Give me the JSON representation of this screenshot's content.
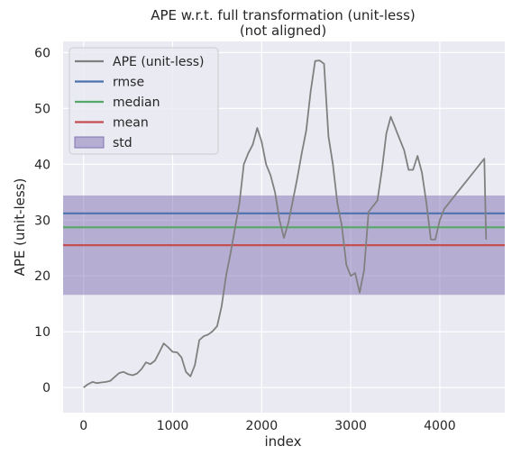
{
  "chart_data": {
    "type": "line",
    "title": [
      "APE w.r.t. full transformation (unit-less)",
      "(not aligned)"
    ],
    "xlabel": "index",
    "ylabel": "APE (unit-less)",
    "xlim": [
      -230,
      4730
    ],
    "ylim": [
      -4.5,
      62
    ],
    "xticks": [
      0,
      1000,
      2000,
      3000,
      4000
    ],
    "yticks": [
      0,
      10,
      20,
      30,
      40,
      50,
      60
    ],
    "grid": true,
    "legend_position": "top-left",
    "legend": [
      "APE (unit-less)",
      "rmse",
      "median",
      "mean",
      "std"
    ],
    "colors": {
      "background": "#eaeaf2",
      "ape": "#808080",
      "rmse": "#4c72b0",
      "median": "#55a868",
      "mean": "#c44e52",
      "std": "#8172b2"
    },
    "stats": {
      "rmse": 31.2,
      "median": 28.7,
      "mean": 25.5,
      "std_band": [
        16.6,
        34.4
      ]
    },
    "series": [
      {
        "name": "APE (unit-less)",
        "x": [
          0,
          50,
          100,
          150,
          200,
          250,
          300,
          350,
          400,
          450,
          500,
          550,
          600,
          650,
          700,
          750,
          800,
          850,
          900,
          950,
          1000,
          1050,
          1100,
          1150,
          1200,
          1250,
          1300,
          1350,
          1400,
          1450,
          1500,
          1550,
          1600,
          1650,
          1700,
          1750,
          1800,
          1850,
          1900,
          1950,
          2000,
          2050,
          2100,
          2150,
          2200,
          2250,
          2300,
          2350,
          2400,
          2450,
          2500,
          2550,
          2600,
          2650,
          2700,
          2750,
          2800,
          2850,
          2900,
          2950,
          3000,
          3050,
          3100,
          3150,
          3200,
          3250,
          3300,
          3350,
          3400,
          3450,
          3500,
          3550,
          3600,
          3650,
          3700,
          3750,
          3800,
          3850,
          3900,
          3950,
          4000,
          4050,
          4100,
          4150,
          4200,
          4250,
          4300,
          4350,
          4400,
          4450,
          4500,
          4520
        ],
        "y": [
          0,
          0.6,
          1.0,
          0.8,
          0.9,
          1.0,
          1.2,
          1.9,
          2.6,
          2.8,
          2.4,
          2.2,
          2.5,
          3.3,
          4.5,
          4.2,
          4.8,
          6.3,
          7.9,
          7.2,
          6.4,
          6.3,
          5.4,
          2.8,
          2.0,
          4.0,
          8.5,
          9.2,
          9.5,
          10.1,
          11.0,
          14.5,
          20.0,
          24.0,
          28.5,
          33.0,
          40.0,
          42.0,
          43.5,
          46.5,
          44.0,
          40.0,
          38.0,
          35.0,
          30.0,
          26.8,
          29.5,
          33.5,
          37.5,
          42.0,
          46.0,
          53.0,
          58.5,
          58.6,
          58.0,
          45.0,
          40.0,
          33.0,
          29.0,
          22.0,
          20.0,
          20.5,
          17.0,
          21.0,
          31.5,
          32.5,
          33.5,
          39.0,
          45.5,
          48.5,
          46.5,
          44.5,
          42.5,
          39.0,
          39.0,
          41.5,
          38.5,
          33.0,
          26.5,
          26.5,
          30.0,
          32.0,
          33.0,
          34.0,
          35.0,
          36.0,
          37.0,
          38.0,
          39.0,
          40.0,
          41.0,
          26.5
        ]
      }
    ]
  }
}
